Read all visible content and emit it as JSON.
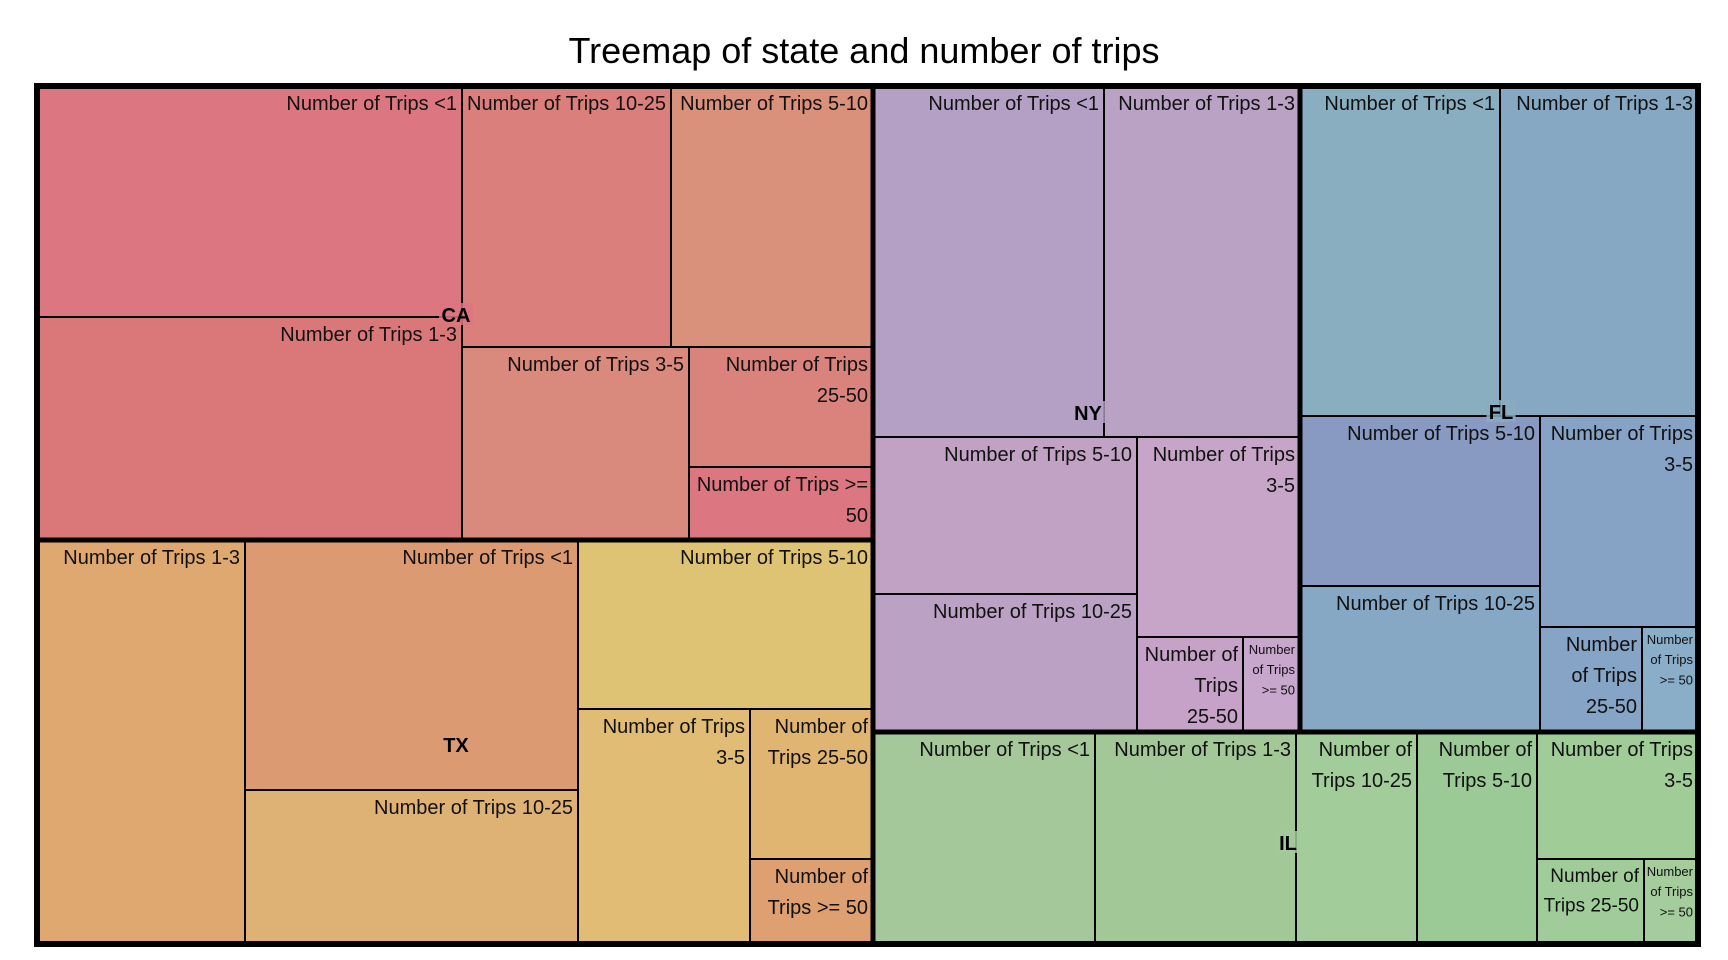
{
  "chart_data": {
    "type": "treemap",
    "title": "Treemap of state and number of trips",
    "groups": [
      {
        "name": "CA",
        "color": "#dc7680",
        "children": [
          {
            "name": "Number of Trips <1",
            "color": "#dc7680"
          },
          {
            "name": "Number of Trips 1-3",
            "color": "#da7879"
          },
          {
            "name": "Number of Trips 10-25",
            "color": "#da7f7b"
          },
          {
            "name": "Number of Trips 5-10",
            "color": "#da917c"
          },
          {
            "name": "Number of Trips 3-5",
            "color": "#da8a7c"
          },
          {
            "name": "Number of Trips 25-50",
            "color": "#da837c"
          },
          {
            "name": "Number of Trips >= 50",
            "color": "#dc7680"
          }
        ]
      },
      {
        "name": "TX",
        "color": "#dc9a72",
        "children": [
          {
            "name": "Number of Trips 1-3",
            "color": "#e0a871"
          },
          {
            "name": "Number of Trips <1",
            "color": "#dc9a72"
          },
          {
            "name": "Number of Trips 10-25",
            "color": "#deb274"
          },
          {
            "name": "Number of Trips 5-10",
            "color": "#dfc374"
          },
          {
            "name": "Number of Trips 3-5",
            "color": "#e0bc74"
          },
          {
            "name": "Number of Trips 25-50",
            "color": "#e0b572"
          },
          {
            "name": "Number of Trips >= 50",
            "color": "#dea070"
          }
        ]
      },
      {
        "name": "NY",
        "color": "#b4a0c4",
        "children": [
          {
            "name": "Number of Trips <1",
            "color": "#b4a0c4"
          },
          {
            "name": "Number of Trips 1-3",
            "color": "#baa2c4"
          },
          {
            "name": "Number of Trips 5-10",
            "color": "#c1a2c4"
          },
          {
            "name": "Number of Trips 3-5",
            "color": "#c7a5c8"
          },
          {
            "name": "Number of Trips 10-25",
            "color": "#bba2c4"
          },
          {
            "name": "Number of Trips 25-50",
            "color": "#c7a2c8"
          },
          {
            "name": "Number of Trips >= 50",
            "color": "#c7a7cc"
          }
        ]
      },
      {
        "name": "FL",
        "color": "#88acbf",
        "children": [
          {
            "name": "Number of Trips <1",
            "color": "#88aec0"
          },
          {
            "name": "Number of Trips 1-3",
            "color": "#86a8c2"
          },
          {
            "name": "Number of Trips 5-10",
            "color": "#889ac2"
          },
          {
            "name": "Number of Trips 3-5",
            "color": "#86a2c4"
          },
          {
            "name": "Number of Trips 10-25",
            "color": "#86a8c4"
          },
          {
            "name": "Number of Trips 25-50",
            "color": "#86a4c6"
          },
          {
            "name": "Number of Trips >= 50",
            "color": "#8aaec8"
          }
        ]
      },
      {
        "name": "IL",
        "color": "#a4c89a",
        "children": [
          {
            "name": "Number of Trips <1",
            "color": "#a4c89a"
          },
          {
            "name": "Number of Trips 1-3",
            "color": "#a2c898"
          },
          {
            "name": "Number of Trips 10-25",
            "color": "#a2cc9a"
          },
          {
            "name": "Number of Trips 5-10",
            "color": "#9cca96"
          },
          {
            "name": "Number of Trips 3-5",
            "color": "#a0cc98"
          },
          {
            "name": "Number of Trips 25-50",
            "color": "#a0cc9a"
          },
          {
            "name": "Number of Trips >= 50",
            "color": "#a4cc9c"
          }
        ]
      }
    ]
  }
}
